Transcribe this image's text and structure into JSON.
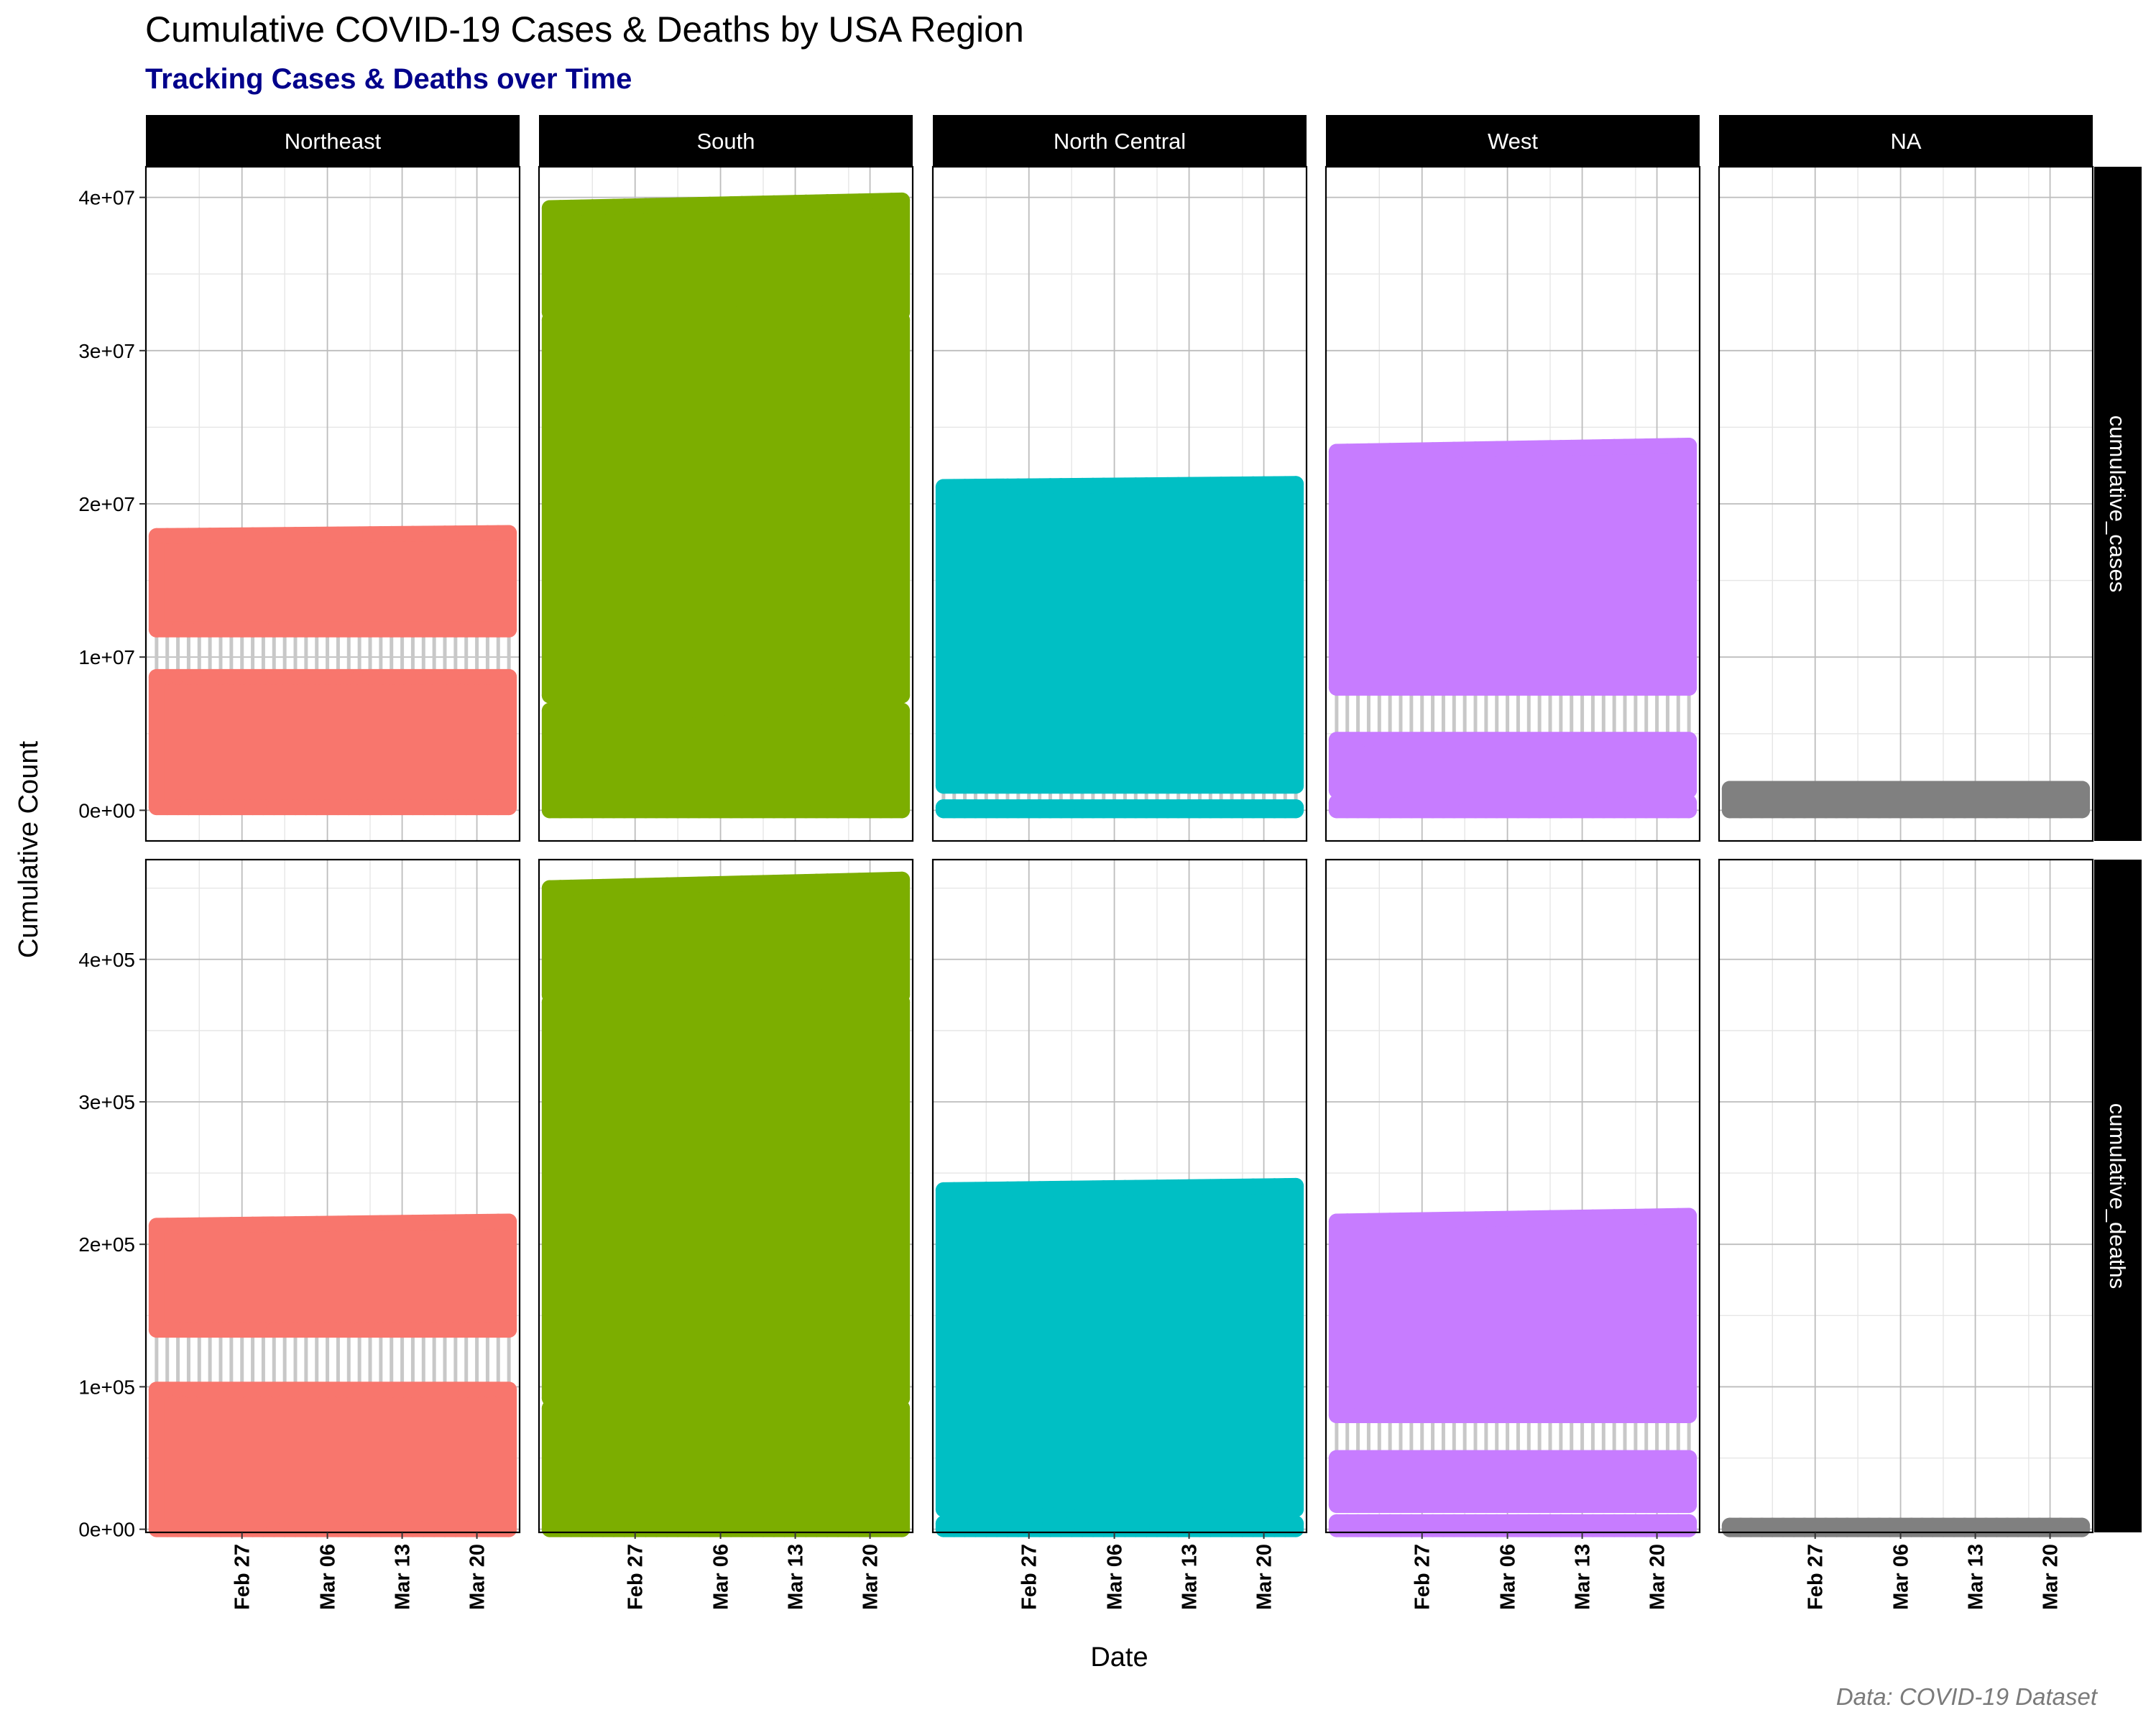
{
  "chart_data": {
    "type": "scatter",
    "title": "Cumulative COVID-19 Cases & Deaths by USA Region",
    "subtitle": "Tracking Cases & Deaths over Time",
    "caption": "Data: COVID-19 Dataset",
    "xlabel": "Date",
    "ylabel": "Cumulative Count",
    "x_ticks": [
      "Feb 27",
      "Mar 06",
      "Mar 13",
      "Mar 20"
    ],
    "x_range": [
      "2020-02-18",
      "2020-03-24"
    ],
    "columns": [
      "Northeast",
      "South",
      "North Central",
      "West",
      "NA"
    ],
    "rows": [
      {
        "name": "cumulative_cases",
        "ylim": [
          -2000000,
          42000000
        ],
        "ticks": [
          0,
          10000000,
          20000000,
          30000000,
          40000000
        ],
        "tick_labels": [
          "0e+00",
          "1e+07",
          "2e+07",
          "3e+07",
          "4e+07"
        ]
      },
      {
        "name": "cumulative_deaths",
        "ylim": [
          -2200,
          470000
        ],
        "ticks": [
          0,
          100000,
          200000,
          300000,
          400000
        ],
        "tick_labels": [
          "0e+00",
          "1e+05",
          "2e+05",
          "3e+05",
          "4e+05"
        ]
      }
    ],
    "colors": {
      "Northeast": "#F8766D",
      "South": "#7CAE00",
      "North Central": "#00BFC4",
      "West": "#C77CFF",
      "NA": "#808080",
      "connector": "#C8C8C8"
    },
    "grid": true,
    "legend": "none",
    "series": [
      {
        "region": "Northeast",
        "measure": "cumulative_cases",
        "point_bands": [
          [
            200000,
            8700000
          ],
          [
            11800000,
            18000000
          ]
        ],
        "connector_range": [
          8700000,
          11800000
        ],
        "max_start": 17900000,
        "max_end": 18100000
      },
      {
        "region": "South",
        "measure": "cumulative_cases",
        "point_bands": [
          [
            0,
            6500000
          ],
          [
            7500000,
            32000000
          ],
          [
            32500000,
            39700000
          ]
        ],
        "connector_range": [
          6500000,
          7500000
        ],
        "max_start": 39300000,
        "max_end": 39800000
      },
      {
        "region": "North Central",
        "measure": "cumulative_cases",
        "point_bands": [
          [
            0,
            200000
          ],
          [
            1600000,
            21200000
          ]
        ],
        "connector_range": [
          200000,
          1600000
        ],
        "max_start": 21100000,
        "max_end": 21300000
      },
      {
        "region": "West",
        "measure": "cumulative_cases",
        "point_bands": [
          [
            0,
            500000
          ],
          [
            1300000,
            4600000
          ],
          [
            8000000,
            23700000
          ]
        ],
        "connector_range": [
          4600000,
          8000000
        ],
        "max_start": 23400000,
        "max_end": 23800000
      },
      {
        "region": "NA",
        "measure": "cumulative_cases",
        "point_bands": [
          [
            0,
            1400000
          ]
        ],
        "connector_range": [
          0,
          0
        ],
        "max_start": 1400000,
        "max_end": 1400000
      },
      {
        "region": "Northeast",
        "measure": "cumulative_deaths",
        "point_bands": [
          [
            0,
            98000
          ],
          [
            140000,
            215000
          ]
        ],
        "connector_range": [
          98000,
          140000
        ],
        "max_start": 213000,
        "max_end": 216000
      },
      {
        "region": "South",
        "measure": "cumulative_deaths",
        "point_bands": [
          [
            0,
            85000
          ],
          [
            92000,
            370000
          ],
          [
            375000,
            455000
          ]
        ],
        "connector_range": [
          85000,
          92000
        ],
        "max_start": 450000,
        "max_end": 456000
      },
      {
        "region": "North Central",
        "measure": "cumulative_deaths",
        "point_bands": [
          [
            0,
            4000
          ],
          [
            14000,
            240000
          ]
        ],
        "connector_range": [
          4000,
          14000
        ],
        "max_start": 238000,
        "max_end": 241000
      },
      {
        "region": "West",
        "measure": "cumulative_deaths",
        "point_bands": [
          [
            0,
            5000
          ],
          [
            17000,
            50000
          ],
          [
            80000,
            218000
          ]
        ],
        "connector_range": [
          50000,
          80000
        ],
        "max_start": 216000,
        "max_end": 220000
      },
      {
        "region": "NA",
        "measure": "cumulative_deaths",
        "point_bands": [
          [
            0,
            2500
          ]
        ],
        "connector_range": [
          0,
          0
        ],
        "max_start": 2500,
        "max_end": 2500
      }
    ]
  }
}
